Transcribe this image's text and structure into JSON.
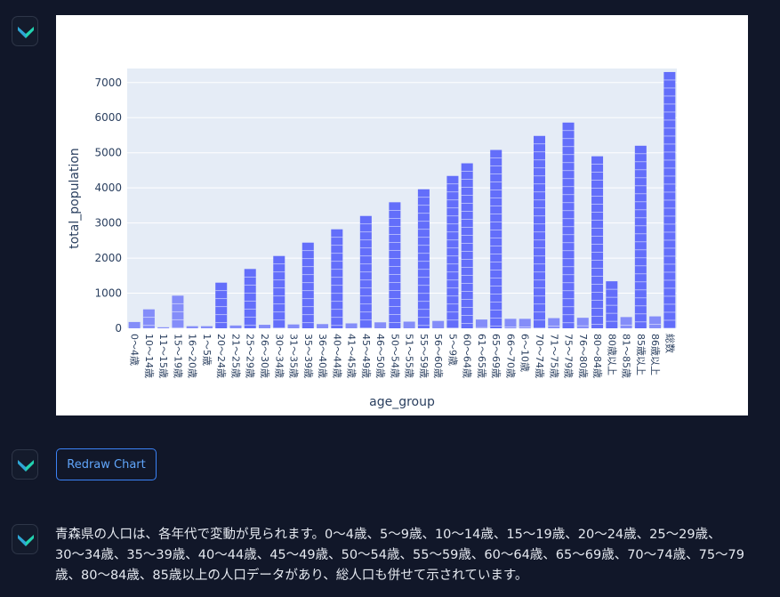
{
  "redraw_label": "Redraw Chart",
  "message_text": "青森県の人口は、各年代で変動が見られます。0〜4歳、5〜9歳、10〜14歳、15〜19歳、20〜24歳、25〜29歳、30〜34歳、35〜39歳、40〜44歳、45〜49歳、50〜54歳、55〜59歳、60〜64歳、65〜69歳、70〜74歳、75〜79歳、80〜84歳、85歳以上の人口データがあり、総人口も併せて示されています。",
  "avatar_icon": "check-logo-icon",
  "colors": {
    "page_bg": "#111729",
    "bar": "#636efa",
    "plot_bg": "#e5ecf6",
    "button": "#3b82f6"
  },
  "chart_data": {
    "type": "bar",
    "xlabel": "age_group",
    "ylabel": "total_population",
    "ylim": [
      0,
      7400
    ],
    "yticks": [
      0,
      1000,
      2000,
      3000,
      4000,
      5000,
      6000,
      7000
    ],
    "categories": [
      "0〜4歳",
      "10〜14歳",
      "11〜15歳",
      "15〜19歳",
      "16〜20歳",
      "1〜5歳",
      "20〜24歳",
      "21〜25歳",
      "25〜29歳",
      "26〜30歳",
      "30〜34歳",
      "31〜35歳",
      "35〜39歳",
      "36〜40歳",
      "40〜44歳",
      "41〜45歳",
      "45〜49歳",
      "46〜50歳",
      "50〜54歳",
      "51〜55歳",
      "55〜59歳",
      "56〜60歳",
      "5〜9歳",
      "60〜64歳",
      "61〜65歳",
      "65〜69歳",
      "66〜70歳",
      "6〜10歳",
      "70〜74歳",
      "71〜75歳",
      "75〜79歳",
      "76〜80歳",
      "80〜84歳",
      "80歳以上",
      "81〜85歳",
      "85歳以上",
      "86歳以上",
      "総数"
    ],
    "values": [
      180,
      540,
      30,
      930,
      60,
      60,
      1300,
      80,
      1690,
      100,
      2060,
      110,
      2440,
      120,
      2820,
      140,
      3200,
      170,
      3590,
      190,
      3960,
      210,
      4340,
      4700,
      250,
      5080,
      270,
      270,
      5480,
      290,
      5860,
      300,
      4900,
      1340,
      320,
      5200,
      340,
      7300
    ],
    "grid": true
  }
}
